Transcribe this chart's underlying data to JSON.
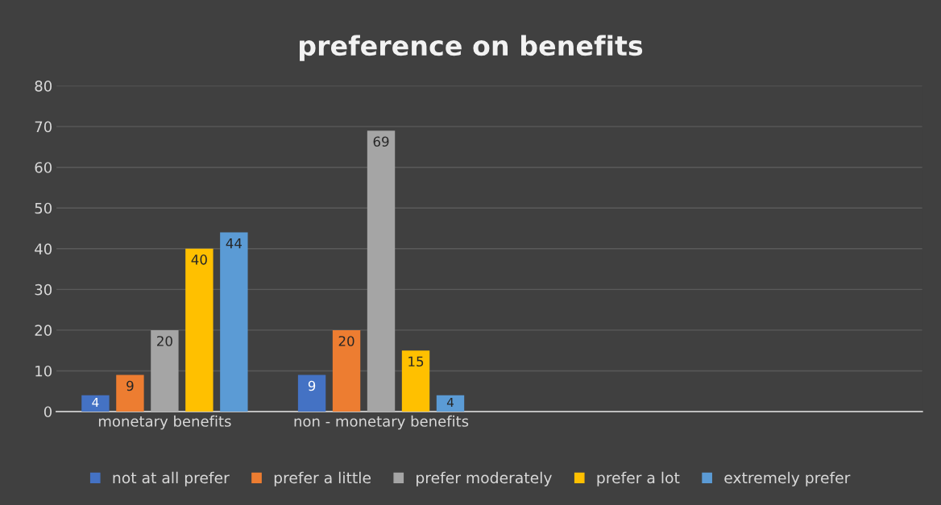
{
  "chart_data": {
    "type": "bar",
    "title": "preference on benefits",
    "categories": [
      "monetary benefits",
      "non - monetary benefits",
      null,
      null
    ],
    "series": [
      {
        "name": "not at all prefer",
        "color": "#4472c4",
        "values": [
          4,
          9,
          null,
          null
        ]
      },
      {
        "name": "prefer a little",
        "color": "#ed7d31",
        "values": [
          9,
          20,
          null,
          null
        ]
      },
      {
        "name": "prefer moderately",
        "color": "#a5a5a5",
        "values": [
          20,
          69,
          null,
          null
        ]
      },
      {
        "name": "prefer a lot",
        "color": "#ffc000",
        "values": [
          40,
          15,
          null,
          null
        ]
      },
      {
        "name": "extremely prefer",
        "color": "#5b9bd5",
        "values": [
          44,
          4,
          null,
          null
        ]
      }
    ],
    "ylim": [
      0,
      80
    ],
    "yticks": [
      0,
      10,
      20,
      30,
      40,
      50,
      60,
      70,
      80
    ],
    "grid": "y",
    "legend": "bottom",
    "data_labels": true
  }
}
